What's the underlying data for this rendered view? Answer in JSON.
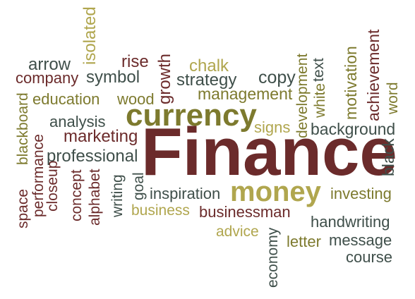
{
  "palette": {
    "maroon": "#6b2b2b",
    "olive": "#7d7a2e",
    "khaki": "#b0a64e",
    "slate": "#3f4f4a"
  },
  "words": [
    {
      "id": "isolated",
      "text": "isolated",
      "color": "#b0a64e"
    },
    {
      "id": "arrow",
      "text": "arrow",
      "color": "#3f4f4a"
    },
    {
      "id": "company",
      "text": "company",
      "color": "#6b2b2b"
    },
    {
      "id": "symbol",
      "text": "symbol",
      "color": "#3f4f4a"
    },
    {
      "id": "rise",
      "text": "rise",
      "color": "#6b2b2b"
    },
    {
      "id": "growth",
      "text": "growth",
      "color": "#6b2b2b"
    },
    {
      "id": "chalk",
      "text": "chalk",
      "color": "#b0a64e"
    },
    {
      "id": "strategy",
      "text": "strategy",
      "color": "#3f4f4a"
    },
    {
      "id": "copy",
      "text": "copy",
      "color": "#3f4f4a"
    },
    {
      "id": "development",
      "text": "development",
      "color": "#7d7a2e"
    },
    {
      "id": "text",
      "text": "text",
      "color": "#3f4f4a"
    },
    {
      "id": "white",
      "text": "white",
      "color": "#7d7a2e"
    },
    {
      "id": "motivation",
      "text": "motivation",
      "color": "#7d7a2e"
    },
    {
      "id": "achievement",
      "text": "achievement",
      "color": "#6b2b2b"
    },
    {
      "id": "word",
      "text": "word",
      "color": "#7d7a2e"
    },
    {
      "id": "education",
      "text": "education",
      "color": "#7d7a2e"
    },
    {
      "id": "wood",
      "text": "wood",
      "color": "#7d7a2e"
    },
    {
      "id": "management",
      "text": "management",
      "color": "#7d7a2e"
    },
    {
      "id": "currency",
      "text": "currency",
      "color": "#7d7a2e"
    },
    {
      "id": "blackboard",
      "text": "blackboard",
      "color": "#7d7a2e"
    },
    {
      "id": "analysis",
      "text": "analysis",
      "color": "#3f4f4a"
    },
    {
      "id": "signs",
      "text": "signs",
      "color": "#b0a64e"
    },
    {
      "id": "background",
      "text": "background",
      "color": "#3f4f4a"
    },
    {
      "id": "marketing",
      "text": "marketing",
      "color": "#6b2b2b"
    },
    {
      "id": "finance",
      "text": "Finance",
      "color": "#6b2b2b"
    },
    {
      "id": "black",
      "text": "black",
      "color": "#3f4f4a"
    },
    {
      "id": "professional",
      "text": "professional",
      "color": "#3f4f4a"
    },
    {
      "id": "performance",
      "text": "performance",
      "color": "#6b2b2b"
    },
    {
      "id": "space",
      "text": "space",
      "color": "#6b2b2b"
    },
    {
      "id": "closeup",
      "text": "closeup",
      "color": "#6b2b2b"
    },
    {
      "id": "concept",
      "text": "concept",
      "color": "#6b2b2b"
    },
    {
      "id": "alphabet",
      "text": "alphabet",
      "color": "#6b2b2b"
    },
    {
      "id": "writing",
      "text": "writing",
      "color": "#3f4f4a"
    },
    {
      "id": "goal",
      "text": "goal",
      "color": "#3f4f4a"
    },
    {
      "id": "inspiration",
      "text": "inspiration",
      "color": "#3f4f4a"
    },
    {
      "id": "money",
      "text": "money",
      "color": "#b0a64e"
    },
    {
      "id": "investing",
      "text": "investing",
      "color": "#7d7a2e"
    },
    {
      "id": "business",
      "text": "business",
      "color": "#b0a64e"
    },
    {
      "id": "businessman",
      "text": "businessman",
      "color": "#6b2b2b"
    },
    {
      "id": "handwriting",
      "text": "handwriting",
      "color": "#3f4f4a"
    },
    {
      "id": "advice",
      "text": "advice",
      "color": "#b0a64e"
    },
    {
      "id": "economy",
      "text": "economy",
      "color": "#3f4f4a"
    },
    {
      "id": "letter",
      "text": "letter",
      "color": "#7d7a2e"
    },
    {
      "id": "message",
      "text": "message",
      "color": "#3f4f4a"
    },
    {
      "id": "course",
      "text": "course",
      "color": "#3f4f4a"
    }
  ]
}
